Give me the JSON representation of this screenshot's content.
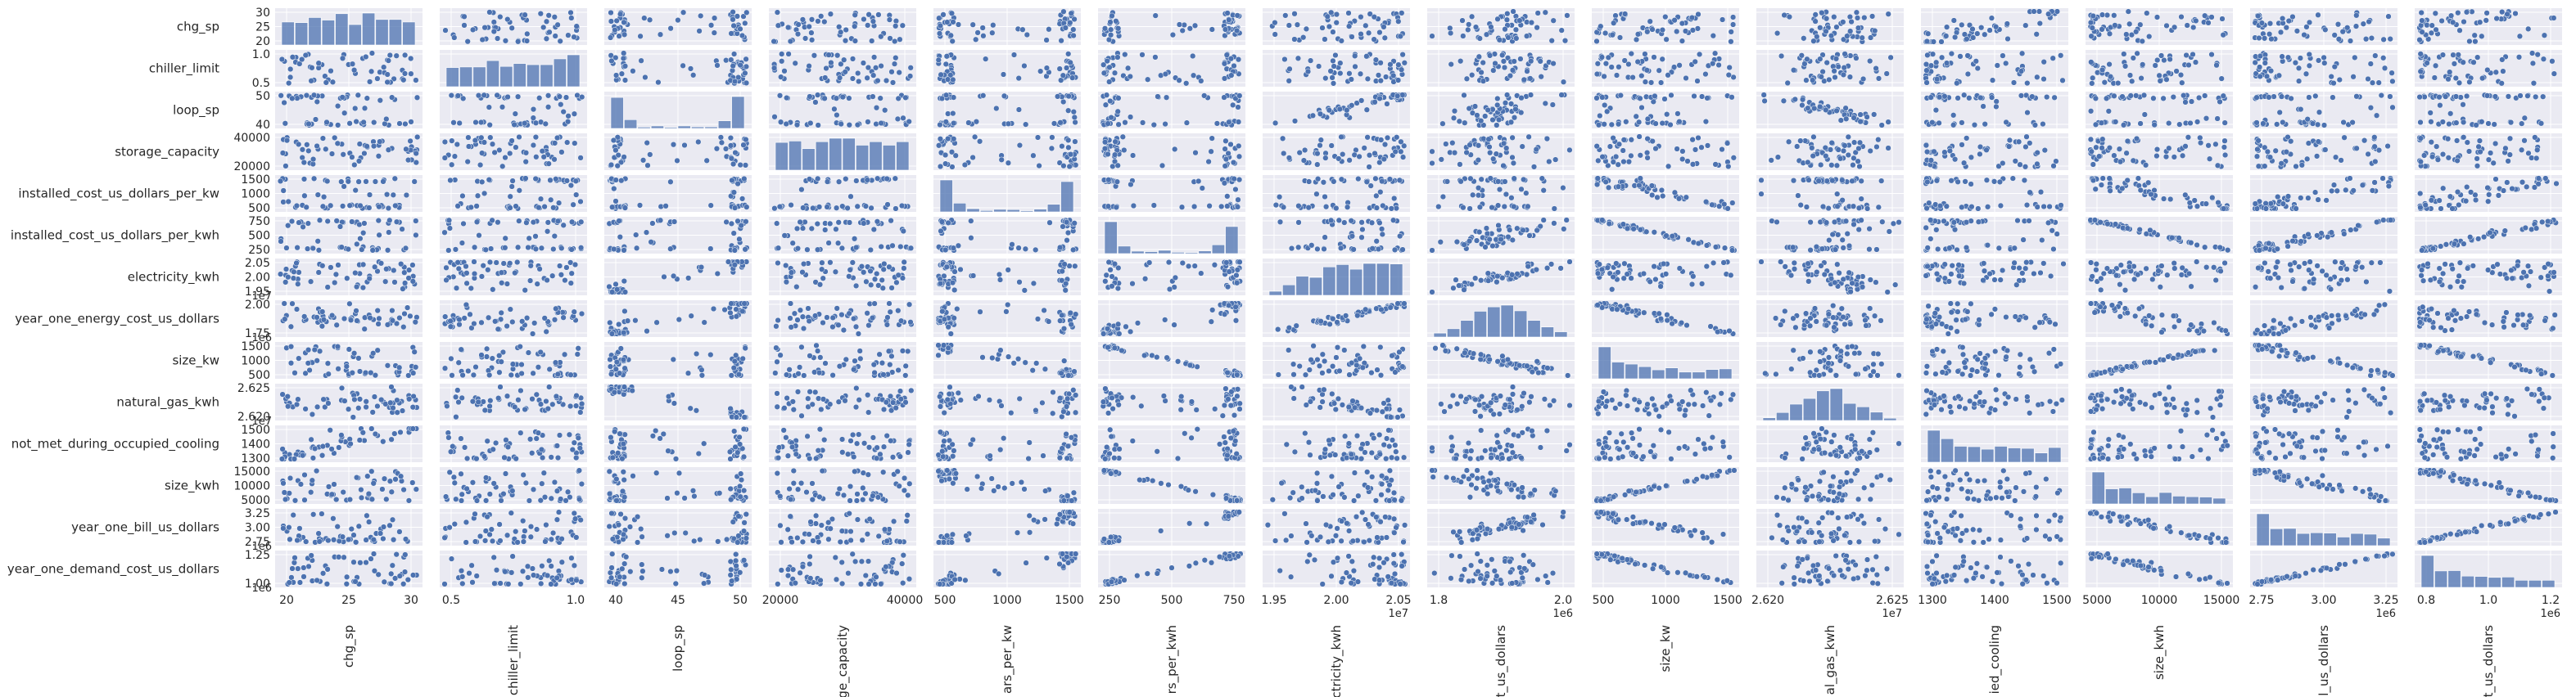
{
  "chart_data": {
    "type": "scatter",
    "kind": "pairplot",
    "grid": true,
    "colors": {
      "background": "#eaeaf2",
      "marker": "#4c72b0",
      "marker_edge": "#ffffff",
      "grid": "#ffffff"
    },
    "variables": [
      {
        "name": "chg_sp",
        "xlabel": "chg_sp",
        "range": [
          20,
          30
        ],
        "yticks": [
          "20",
          "25",
          "30"
        ],
        "xticks": [
          "20",
          "25",
          "30"
        ],
        "dist": "u"
      },
      {
        "name": "chiller_limit",
        "xlabel": "chiller_limit",
        "range": [
          0.2,
          1.0
        ],
        "yticks": [
          "0.5",
          "1.0"
        ],
        "xticks": [
          "0.5",
          "1.0"
        ],
        "dist": "u"
      },
      {
        "name": "loop_sp",
        "xlabel": "loop_sp",
        "range": [
          40,
          50
        ],
        "yticks": [
          "40",
          "50"
        ],
        "xticks": [
          "40",
          "45",
          "50"
        ],
        "dist": "b"
      },
      {
        "name": "storage_capacity",
        "xlabel": "ge_capacity",
        "range": [
          5000,
          40000
        ],
        "yticks": [
          "20000",
          "40000"
        ],
        "xticks": [
          "20000",
          "40000"
        ],
        "dist": "u"
      },
      {
        "name": "installed_cost_us_dollars_per_kw",
        "xlabel": "ars_per_kw",
        "range": [
          400,
          1700
        ],
        "yticks": [
          "500",
          "1000",
          "1500"
        ],
        "xticks": [
          "500",
          "1000",
          "1500"
        ],
        "dist": "b"
      },
      {
        "name": "installed_cost_us_dollars_per_kwh",
        "xlabel": "rs_per_kwh",
        "range": [
          200,
          820
        ],
        "yticks": [
          "250",
          "500",
          "750"
        ],
        "xticks": [
          "250",
          "500",
          "750"
        ],
        "dist": "b"
      },
      {
        "name": "electricity_kwh",
        "xlabel": "ectricity_kwh",
        "range": [
          19400000,
          20550000
        ],
        "yticks": [
          "1.95",
          "2.00",
          "2.05"
        ],
        "xticks": [
          "1.95",
          "2.00",
          "2.05"
        ],
        "offset": "1e7",
        "dist": "h"
      },
      {
        "name": "year_one_energy_cost_us_dollars",
        "xlabel": "t_us_dollars",
        "range": [
          1660000,
          2030000
        ],
        "yticks": [
          "1.75",
          "2.00"
        ],
        "xticks": [
          "1.8",
          "2.0"
        ],
        "offset": "1e6",
        "dist": "n"
      },
      {
        "name": "size_kw",
        "xlabel": "size_kw",
        "range": [
          300,
          1900
        ],
        "yticks": [
          "500",
          "1000",
          "1500"
        ],
        "xticks": [
          "500",
          "1000",
          "1500"
        ],
        "dist": "s"
      },
      {
        "name": "natural_gas_kwh",
        "xlabel": "al_gas_kwh",
        "range": [
          26170000,
          26275000
        ],
        "yticks": [
          "2.620",
          "2.625"
        ],
        "xticks": [
          "2.620",
          "2.625"
        ],
        "offset": "1e7",
        "dist": "n"
      },
      {
        "name": "not_met_during_occupied_cooling",
        "xlabel": "ied_cooling",
        "range": [
          1280,
          1570
        ],
        "yticks": [
          "1300",
          "1400",
          "1500"
        ],
        "xticks": [
          "1300",
          "1400",
          "1500"
        ],
        "dist": "s"
      },
      {
        "name": "size_kwh",
        "xlabel": "size_kwh",
        "range": [
          1000,
          15500
        ],
        "yticks": [
          "5000",
          "10000",
          "15000"
        ],
        "xticks": [
          "5000",
          "10000",
          "15000"
        ],
        "dist": "s"
      },
      {
        "name": "year_one_bill_us_dollars",
        "xlabel": "l_us_dollars",
        "range": [
          2550000,
          3400000
        ],
        "yticks": [
          "2.75",
          "3.00",
          "3.25"
        ],
        "xticks": [
          "2.75",
          "3.00",
          "3.25"
        ],
        "offset": "1e6",
        "dist": "s"
      },
      {
        "name": "year_one_demand_cost_us_dollars",
        "xlabel": "t_us_dollars",
        "range": [
          750000,
          1350000
        ],
        "yticks": [
          "1.00",
          "1.25"
        ],
        "xticks": [
          "0.8",
          "1.0",
          "1.2"
        ],
        "offset": "1e6",
        "dist": "s"
      }
    ],
    "relations": [
      [
        8,
        5,
        -0.95
      ],
      [
        11,
        5,
        -0.95
      ],
      [
        11,
        8,
        0.95
      ],
      [
        13,
        5,
        0.9
      ],
      [
        12,
        5,
        0.8
      ],
      [
        12,
        4,
        0.5
      ],
      [
        12,
        13,
        0.95
      ],
      [
        8,
        12,
        -0.85
      ],
      [
        11,
        12,
        -0.8
      ],
      [
        13,
        8,
        -0.9
      ],
      [
        13,
        11,
        -0.85
      ],
      [
        7,
        6,
        0.8
      ],
      [
        7,
        8,
        -0.8
      ],
      [
        7,
        5,
        0.5
      ],
      [
        7,
        2,
        0.3
      ],
      [
        7,
        12,
        0.6
      ],
      [
        8,
        4,
        -0.6
      ],
      [
        11,
        4,
        -0.6
      ],
      [
        6,
        2,
        0.7
      ],
      [
        9,
        2,
        -0.75
      ],
      [
        9,
        6,
        -0.5
      ],
      [
        13,
        4,
        0.5
      ],
      [
        10,
        0,
        0.4
      ],
      [
        11,
        7,
        -0.5
      ]
    ]
  }
}
